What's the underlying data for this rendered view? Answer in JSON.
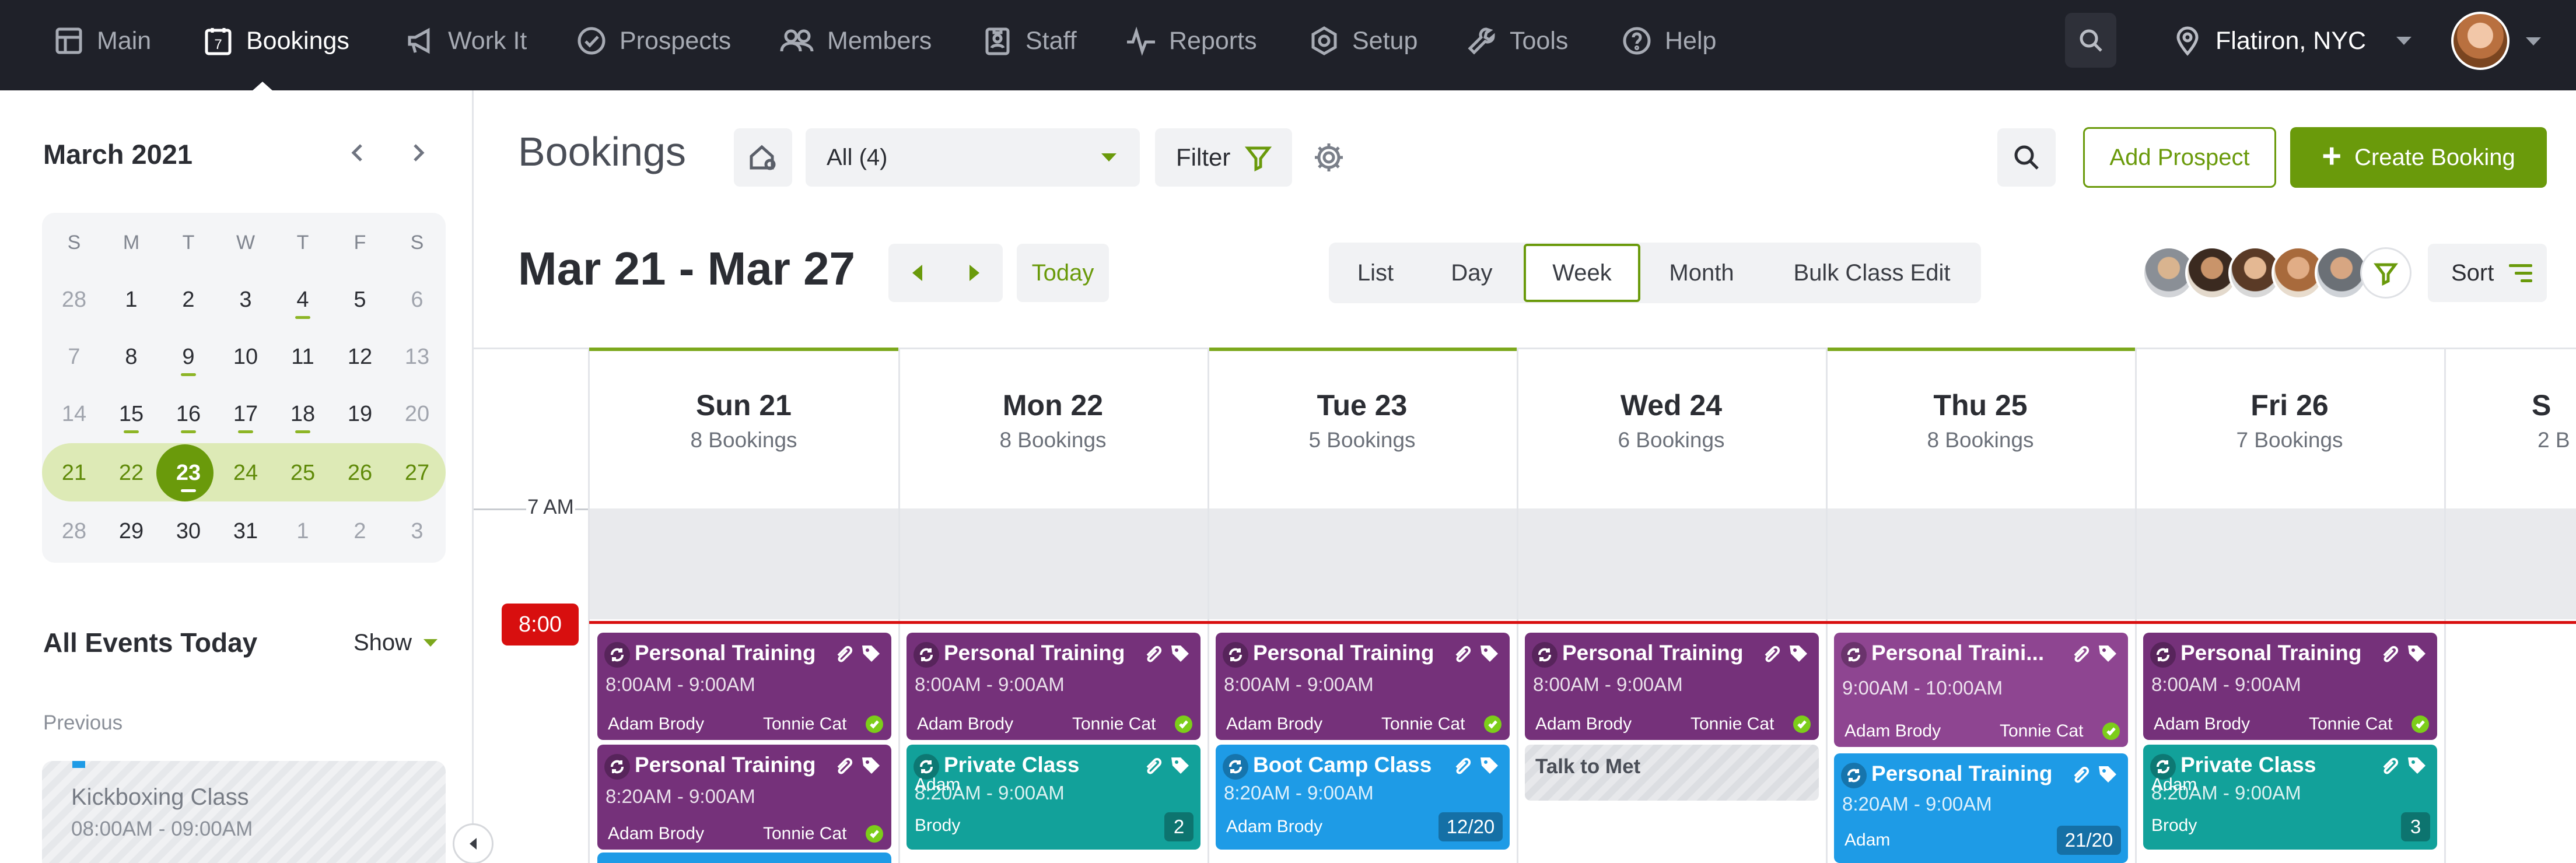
{
  "nav": {
    "items": [
      {
        "label": "Main",
        "icon": "grid-icon"
      },
      {
        "label": "Bookings",
        "icon": "calendar-7-icon"
      },
      {
        "label": "Work It",
        "icon": "megaphone-icon"
      },
      {
        "label": "Prospects",
        "icon": "check-circle-icon"
      },
      {
        "label": "Members",
        "icon": "users-icon"
      },
      {
        "label": "Staff",
        "icon": "id-badge-icon"
      },
      {
        "label": "Reports",
        "icon": "pulse-icon"
      },
      {
        "label": "Setup",
        "icon": "hex-gear-icon"
      },
      {
        "label": "Tools",
        "icon": "wrench-icon"
      },
      {
        "label": "Help",
        "icon": "help-circle-icon"
      }
    ],
    "calendar_icon_day": "7",
    "active": "Bookings",
    "location": "Flatiron, NYC"
  },
  "mini_calendar": {
    "title": "March 2021",
    "weekday_headers": [
      "S",
      "M",
      "T",
      "W",
      "T",
      "F",
      "S"
    ],
    "weeks": [
      [
        "28",
        "1",
        "2",
        "3",
        "4",
        "5",
        "6"
      ],
      [
        "7",
        "8",
        "9",
        "10",
        "11",
        "12",
        "13"
      ],
      [
        "14",
        "15",
        "16",
        "17",
        "18",
        "19",
        "20"
      ],
      [
        "21",
        "22",
        "23",
        "24",
        "25",
        "26",
        "27"
      ],
      [
        "28",
        "29",
        "30",
        "31",
        "1",
        "2",
        "3"
      ]
    ],
    "selected": "23"
  },
  "events_today": {
    "title": "All Events Today",
    "show_label": "Show",
    "previous_label": "Previous",
    "previous_event": {
      "title": "Kickboxing Class",
      "time": "08:00AM - 09:00AM"
    }
  },
  "header": {
    "title": "Bookings",
    "filter_select": "All (4)",
    "filter_label": "Filter",
    "add_prospect": "Add Prospect",
    "create_booking": "Create Booking",
    "create_booking_icon": "+",
    "date_range": "Mar 21 - Mar 27",
    "today_label": "Today",
    "views": [
      "List",
      "Day",
      "Week",
      "Month",
      "Bulk Class Edit"
    ],
    "active_view": "Week",
    "sort_label": "Sort"
  },
  "days": [
    {
      "name": "Sun 21",
      "count": "8 Bookings"
    },
    {
      "name": "Mon 22",
      "count": "8 Bookings"
    },
    {
      "name": "Tue 23",
      "count": "5 Bookings"
    },
    {
      "name": "Wed 24",
      "count": "6 Bookings"
    },
    {
      "name": "Thu 25",
      "count": "8 Bookings"
    },
    {
      "name": "Fri 26",
      "count": "7 Bookings"
    },
    {
      "name": "S",
      "count": "2 B"
    }
  ],
  "time_labels": {
    "seven": "7 AM",
    "now": "8:00"
  },
  "events": {
    "sun1": {
      "title": "Personal Training",
      "time": "8:00AM - 9:00AM",
      "client": "Adam Brody",
      "trainer": "Tonnie Cat"
    },
    "sun2": {
      "title": "Personal Training",
      "time": "8:20AM - 9:00AM",
      "client": "Adam Brody",
      "trainer": "Tonnie Cat"
    },
    "mon1": {
      "title": "Personal Training",
      "time": "8:00AM - 9:00AM",
      "client": "Adam Brody",
      "trainer": "Tonnie Cat"
    },
    "mon2": {
      "title": "Private Class",
      "time": "8:20AM - 9:00AM",
      "client_top": "Adam",
      "client_bottom": "Brody",
      "badge": "2"
    },
    "tue1": {
      "title": "Personal Training",
      "time": "8:00AM - 9:00AM",
      "client": "Adam Brody",
      "trainer": "Tonnie Cat"
    },
    "tue2": {
      "title": "Boot Camp Class",
      "time": "8:20AM - 9:00AM",
      "client": "Adam Brody",
      "badge": "12/20"
    },
    "wed1": {
      "title": "Personal Training",
      "time": "8:00AM - 9:00AM",
      "client": "Adam Brody",
      "trainer": "Tonnie Cat"
    },
    "wed2": {
      "title": "Talk to Met"
    },
    "thu1": {
      "title": "Personal Traini...",
      "time": "9:00AM - 10:00AM",
      "client": "Adam Brody",
      "trainer": "Tonnie Cat"
    },
    "thu2": {
      "title": "Personal Training",
      "time": "8:20AM - 9:00AM",
      "client": "Adam",
      "badge": "21/20"
    },
    "fri1": {
      "title": "Personal Training",
      "time": "8:00AM - 9:00AM",
      "client": "Adam Brody",
      "trainer": "Tonnie Cat"
    },
    "fri2": {
      "title": "Private Class",
      "time": "8:20AM - 9:00AM",
      "client_top": "Adam",
      "client_bottom": "Brody",
      "badge": "3"
    }
  },
  "colors": {
    "accent": "#6a9a0b",
    "nav_bg": "#1f2129",
    "now_line": "#d80f0f",
    "event_purple": "#75317a",
    "event_teal": "#12a19a",
    "event_blue": "#1e9be6"
  }
}
